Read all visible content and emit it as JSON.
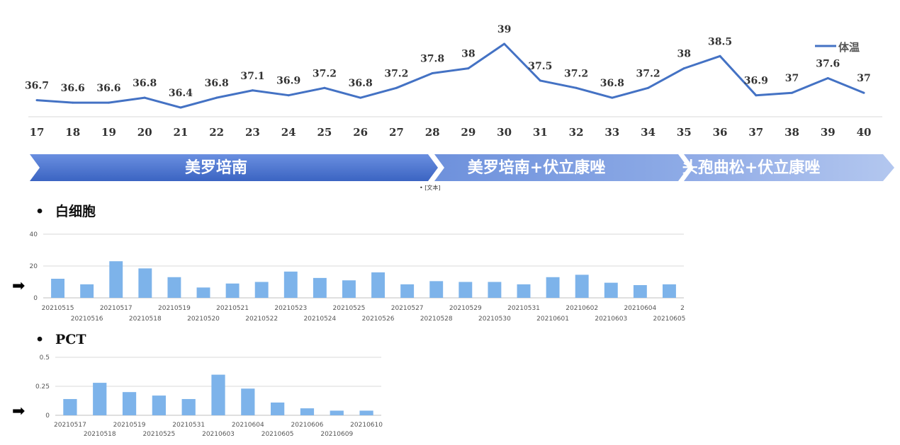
{
  "chart_data": [
    {
      "type": "line",
      "x": [
        "17",
        "18",
        "19",
        "20",
        "21",
        "22",
        "23",
        "24",
        "25",
        "26",
        "27",
        "28",
        "29",
        "30",
        "31",
        "32",
        "33",
        "34",
        "35",
        "36",
        "37",
        "38",
        "39",
        "40"
      ],
      "series": [
        {
          "name": "体温",
          "values": [
            36.7,
            36.6,
            36.6,
            36.8,
            36.4,
            36.8,
            37.1,
            36.9,
            37.2,
            36.8,
            37.2,
            37.8,
            38,
            39,
            37.5,
            37.2,
            36.8,
            37.2,
            38,
            38.5,
            36.9,
            37,
            37.6,
            37
          ],
          "color": "#4472C4"
        }
      ],
      "legend": "top-right"
    },
    {
      "type": "bar",
      "title": "白细胞",
      "categories": [
        "20210515",
        "20210516",
        "20210517",
        "20210518",
        "20210519",
        "20210520",
        "20210521",
        "20210522",
        "20210523",
        "20210524",
        "20210525",
        "20210526",
        "20210527",
        "20210528",
        "20210529",
        "20210530",
        "20210531",
        "20210601",
        "20210602",
        "20210603",
        "20210604",
        "20210605"
      ],
      "values": [
        12,
        8.5,
        23,
        18.5,
        13,
        6.5,
        9,
        10,
        16.5,
        12.5,
        11,
        16,
        8.5,
        10.5,
        10,
        10,
        8.5,
        13,
        14.5,
        9.5,
        8,
        8.5
      ],
      "yticks": [
        "0",
        "20",
        "40"
      ],
      "ylim": [
        0,
        40
      ],
      "trailing_tick": "2",
      "color": "#7DB3EA"
    },
    {
      "type": "bar",
      "title": "PCT",
      "categories": [
        "20210517",
        "20210518",
        "20210519",
        "20210525",
        "20210531",
        "20210603",
        "20210604",
        "20210605",
        "20210606",
        "20210609",
        "20210610"
      ],
      "values": [
        0.14,
        0.28,
        0.2,
        0.17,
        0.14,
        0.35,
        0.23,
        0.11,
        0.06,
        0.04,
        0.04
      ],
      "yticks": [
        "0",
        "0.25",
        "0.5"
      ],
      "ylim": [
        0,
        0.5
      ],
      "color": "#7DB3EA"
    }
  ],
  "phases": [
    {
      "label": "美罗培南",
      "color": "#4A73C9"
    },
    {
      "label": "美罗培南+伏立康唑",
      "color": "#7F9FE0"
    },
    {
      "label": "头孢曲松+伏立康唑",
      "color": "#A5BCEB"
    }
  ],
  "note": "• [文本]",
  "bullet": "•",
  "arrow": "➡"
}
